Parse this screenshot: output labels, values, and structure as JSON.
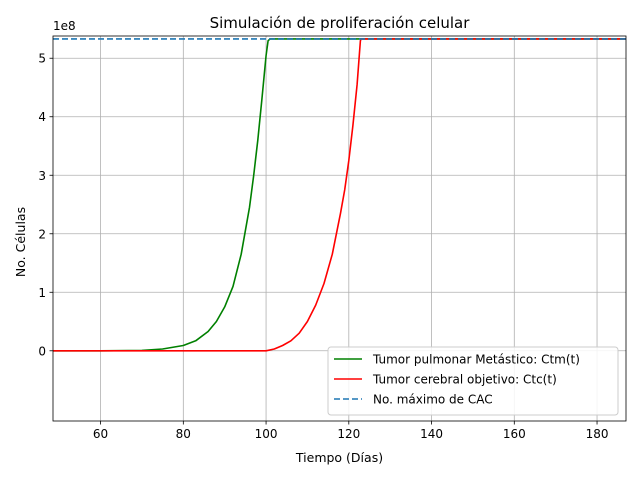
{
  "chart_data": {
    "type": "line",
    "title": "Simulación de proliferación celular",
    "xlabel": "Tiempo (Días)",
    "ylabel": "No. Células",
    "y_offset_label": "1e8",
    "xlim": [
      48.5,
      187
    ],
    "ylim": [
      -1.2,
      5.38
    ],
    "y_scale_factor": 100000000,
    "x_ticks": [
      60,
      80,
      100,
      120,
      140,
      160,
      180
    ],
    "x_tick_labels": [
      "60",
      "80",
      "100",
      "120",
      "140",
      "160",
      "180"
    ],
    "y_ticks": [
      0,
      1,
      2,
      3,
      4,
      5
    ],
    "y_tick_labels": [
      "0",
      "1",
      "2",
      "3",
      "4",
      "5"
    ],
    "grid": true,
    "legend_position": "lower-right",
    "series": [
      {
        "name": "Tumor pulmonar Metástico: Ctm(t)",
        "color": "#008000",
        "style": "solid",
        "x": [
          48.5,
          60,
          70,
          75,
          80,
          83,
          86,
          88,
          90,
          92,
          94,
          96,
          97,
          98,
          99,
          100,
          100.5,
          101,
          110,
          120,
          130,
          187
        ],
        "y": [
          0.0,
          0.0003,
          0.007,
          0.03,
          0.09,
          0.17,
          0.33,
          0.5,
          0.75,
          1.1,
          1.65,
          2.45,
          3.0,
          3.6,
          4.3,
          5.05,
          5.3,
          5.33,
          5.33,
          5.33,
          5.33,
          5.33
        ]
      },
      {
        "name": "Tumor cerebral objetivo: Ctc(t)",
        "color": "#ff0000",
        "style": "solid",
        "x": [
          48.5,
          70,
          90,
          100,
          102,
          104,
          106,
          108,
          110,
          112,
          114,
          116,
          118,
          119,
          120,
          121,
          122,
          122.8,
          123,
          140,
          187
        ],
        "y": [
          0.0,
          0.0,
          0.0,
          0.0,
          0.03,
          0.09,
          0.17,
          0.3,
          0.5,
          0.78,
          1.15,
          1.65,
          2.35,
          2.75,
          3.25,
          3.85,
          4.55,
          5.3,
          5.33,
          5.33,
          5.33
        ]
      },
      {
        "name": "No. máximo de CAC",
        "color": "#1f77b4",
        "style": "dashed",
        "x": [
          48.5,
          187
        ],
        "y": [
          5.33,
          5.33
        ]
      }
    ]
  }
}
